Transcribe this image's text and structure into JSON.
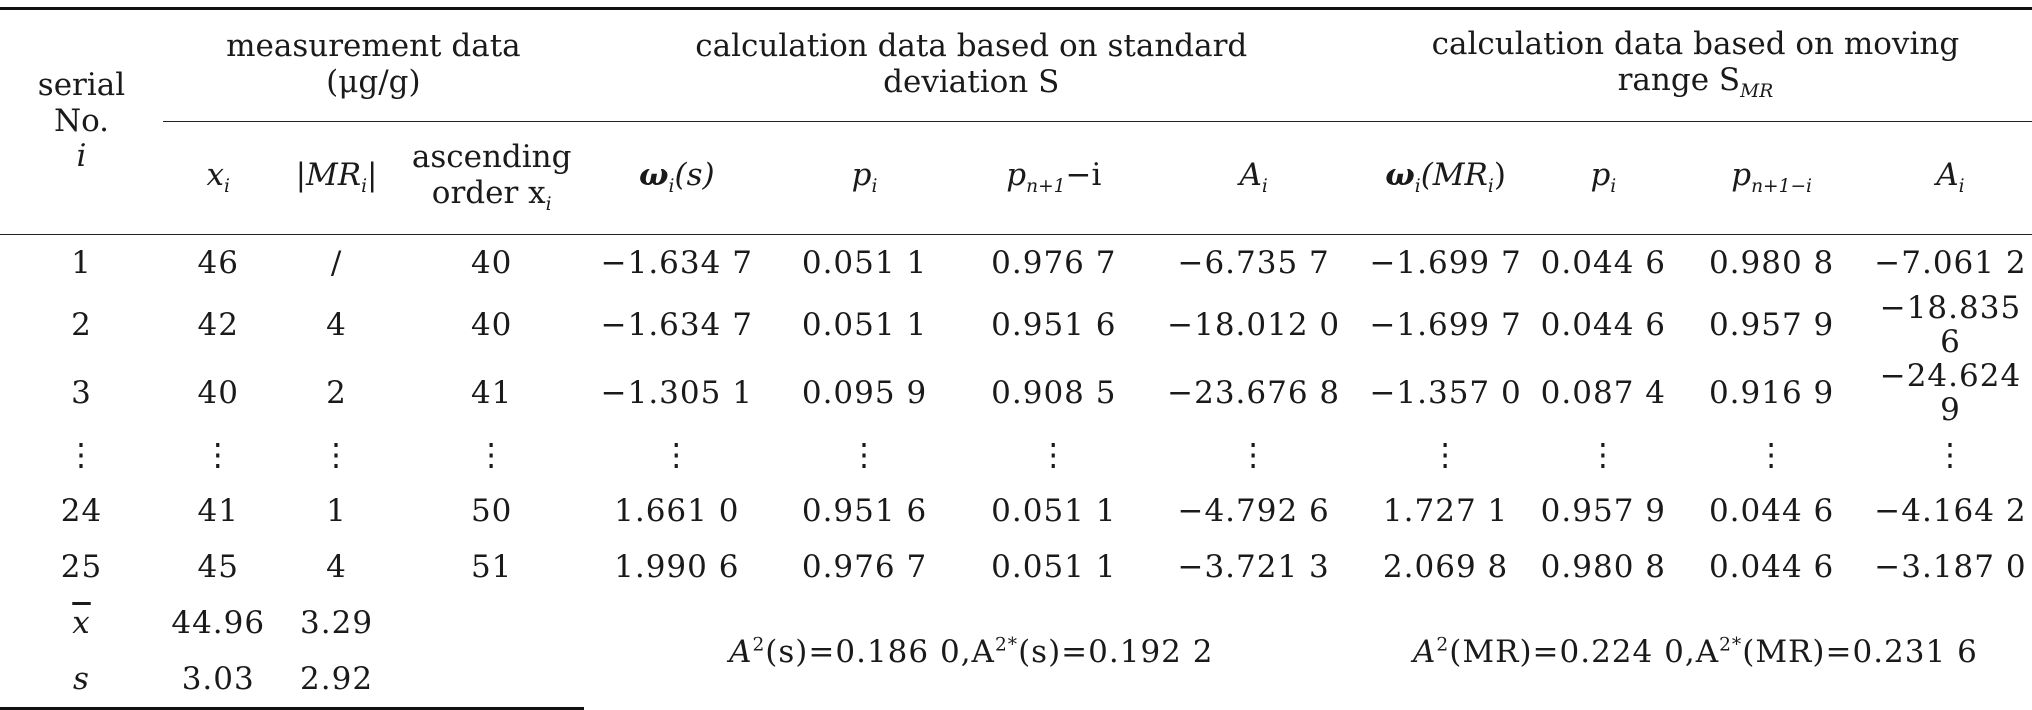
{
  "header": {
    "serial": "serial No.",
    "serial_i": "i",
    "measurement": "measurement data",
    "measurement_unit": "(μg/g)",
    "std_group_line1": "calculation data based on standard",
    "std_group_line2": "deviation S",
    "mr_group_line1": "calculation data based on moving",
    "mr_group_line2": "range S",
    "mr_group_sub": "MR",
    "cols": {
      "xi": "x",
      "xi_sub": "i",
      "mr": "|MR",
      "mr_sub": "i",
      "mr_end": "|",
      "asc_line1": "ascending",
      "asc_line2": "order x",
      "asc_sub": "i",
      "omega_s": "ω",
      "omega_s_sub": "i",
      "omega_s_arg": "(s)",
      "p1": "p",
      "p1_sub": "i",
      "pn1": "p",
      "pn1_sub": "n+1",
      "pn1_end": "−i",
      "a1": "A",
      "a1_sub": "i",
      "omega_mr": "ω",
      "omega_mr_sub": "i",
      "omega_mr_arg": "(MR",
      "omega_mr_arg_sub": "i",
      "omega_mr_end": ")",
      "p2": "p",
      "p2_sub": "i",
      "pn2": "p",
      "pn2_sub": "n+1−i",
      "a2": "A",
      "a2_sub": "i"
    }
  },
  "rows": [
    [
      "1",
      "46",
      "/",
      "40",
      "−1.634 7",
      "0.051 1",
      "0.976 7",
      "−6.735 7",
      "−1.699 7",
      "0.044 6",
      "0.980 8",
      "−7.061 2"
    ],
    [
      "2",
      "42",
      "4",
      "40",
      "−1.634 7",
      "0.051 1",
      "0.951 6",
      "−18.012 0",
      "−1.699 7",
      "0.044 6",
      "0.957 9",
      "−18.835 6"
    ],
    [
      "3",
      "40",
      "2",
      "41",
      "−1.305 1",
      "0.095 9",
      "0.908 5",
      "−23.676 8",
      "−1.357 0",
      "0.087 4",
      "0.916 9",
      "−24.624 9"
    ],
    [
      "⋮",
      "⋮",
      "⋮",
      "⋮",
      "⋮",
      "⋮",
      "⋮",
      "⋮",
      "⋮",
      "⋮",
      "⋮",
      "⋮"
    ],
    [
      "24",
      "41",
      "1",
      "50",
      "1.661 0",
      "0.951 6",
      "0.051 1",
      "−4.792 6",
      "1.727 1",
      "0.957 9",
      "0.044 6",
      "−4.164 2"
    ],
    [
      "25",
      "45",
      "4",
      "51",
      "1.990 6",
      "0.976 7",
      "0.051 1",
      "−3.721 3",
      "2.069 8",
      "0.980 8",
      "0.044 6",
      "−3.187 0"
    ]
  ],
  "summary": {
    "mean_label": "x",
    "mean_x": "44.96",
    "mean_mr": "3.29",
    "s_label": "s",
    "s_x": "3.03",
    "s_mr": "2.92",
    "std_a2": "A",
    "std_a2_sup": "2",
    "std_a2_arg": "(s)=0.186 0,A",
    "std_a2star_sup": "2*",
    "std_a2star_arg": "(s)=0.192 2",
    "mr_a2": "A",
    "mr_a2_sup": "2",
    "mr_a2_arg": "(MR)=0.224 0,A",
    "mr_a2star_sup": "2*",
    "mr_a2star_arg": "(MR)=0.231 6"
  }
}
